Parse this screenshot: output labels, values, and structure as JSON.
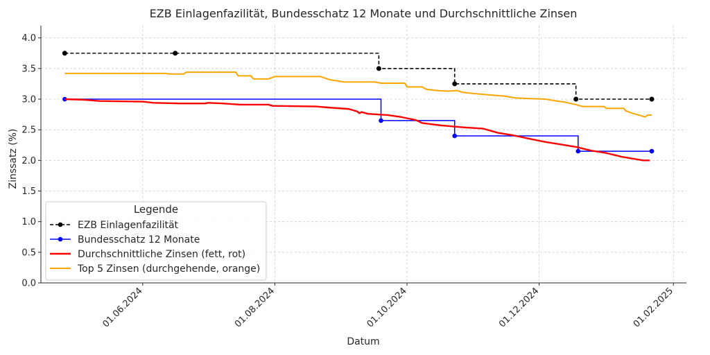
{
  "chart_data": {
    "type": "line",
    "title": "EZB Einlagenfazilität, Bundesschatz 12 Monate und Durchschnittliche Zinsen",
    "xlabel": "Datum",
    "ylabel": "Zinssatz (%)",
    "xlim": [
      "2024-04-15",
      "2025-02-07"
    ],
    "ylim": [
      0,
      4.2
    ],
    "x_ticks": [
      {
        "date": "2024-06-01",
        "label": "01.06.2024"
      },
      {
        "date": "2024-08-01",
        "label": "01.08.2024"
      },
      {
        "date": "2024-10-01",
        "label": "01.10.2024"
      },
      {
        "date": "2024-12-01",
        "label": "01.12.2024"
      },
      {
        "date": "2025-02-01",
        "label": "01.02.2025"
      }
    ],
    "y_ticks": [
      "0.0",
      "0.5",
      "1.0",
      "1.5",
      "2.0",
      "2.5",
      "3.0",
      "3.5",
      "4.0"
    ],
    "grid": true,
    "legend": {
      "title": "Legende",
      "placement": "lower-left",
      "entries": [
        "EZB Einlagenfazilität",
        "Bundesschatz 12 Monate",
        "Durchschnittliche Zinsen (fett, rot)",
        "Top 5 Zinsen (durchgehende, orange)"
      ]
    },
    "series": [
      {
        "name": "EZB Einlagenfazilität",
        "color": "#000000",
        "style": "dashed-step-markers",
        "points": [
          [
            "2024-04-26",
            3.75
          ],
          [
            "2024-06-16",
            3.75
          ],
          [
            "2024-09-18",
            3.5
          ],
          [
            "2024-10-23",
            3.25
          ],
          [
            "2024-12-18",
            3.0
          ],
          [
            "2025-01-22",
            3.0
          ]
        ]
      },
      {
        "name": "Bundesschatz 12 Monate",
        "color": "#0000ff",
        "style": "solid-step-markers",
        "points": [
          [
            "2024-04-26",
            3.0
          ],
          [
            "2024-09-19",
            2.65
          ],
          [
            "2024-10-23",
            2.4
          ],
          [
            "2024-12-19",
            2.15
          ],
          [
            "2025-01-22",
            2.15
          ]
        ]
      },
      {
        "name": "Durchschnittliche Zinsen (fett, rot)",
        "color": "#ff0000",
        "style": "bold-line",
        "points": [
          [
            "2024-04-26",
            3.0
          ],
          [
            "2024-05-05",
            2.99
          ],
          [
            "2024-05-12",
            2.97
          ],
          [
            "2024-06-01",
            2.96
          ],
          [
            "2024-06-06",
            2.94
          ],
          [
            "2024-06-18",
            2.93
          ],
          [
            "2024-06-30",
            2.93
          ],
          [
            "2024-07-01",
            2.94
          ],
          [
            "2024-07-08",
            2.93
          ],
          [
            "2024-07-16",
            2.91
          ],
          [
            "2024-07-29",
            2.91
          ],
          [
            "2024-07-31",
            2.89
          ],
          [
            "2024-08-20",
            2.88
          ],
          [
            "2024-08-27",
            2.86
          ],
          [
            "2024-09-04",
            2.84
          ],
          [
            "2024-09-08",
            2.8
          ],
          [
            "2024-09-09",
            2.77
          ],
          [
            "2024-09-10",
            2.79
          ],
          [
            "2024-09-13",
            2.76
          ],
          [
            "2024-09-22",
            2.74
          ],
          [
            "2024-09-28",
            2.71
          ],
          [
            "2024-10-05",
            2.66
          ],
          [
            "2024-10-08",
            2.61
          ],
          [
            "2024-10-17",
            2.57
          ],
          [
            "2024-10-27",
            2.54
          ],
          [
            "2024-11-05",
            2.52
          ],
          [
            "2024-11-12",
            2.45
          ],
          [
            "2024-11-19",
            2.41
          ],
          [
            "2024-11-27",
            2.35
          ],
          [
            "2024-12-04",
            2.3
          ],
          [
            "2024-12-11",
            2.26
          ],
          [
            "2024-12-18",
            2.22
          ],
          [
            "2024-12-25",
            2.16
          ],
          [
            "2025-01-01",
            2.12
          ],
          [
            "2025-01-08",
            2.06
          ],
          [
            "2025-01-13",
            2.03
          ],
          [
            "2025-01-18",
            2.0
          ],
          [
            "2025-01-21",
            2.0
          ]
        ]
      },
      {
        "name": "Top 5 Zinsen (durchgehende, orange)",
        "color": "#ffa500",
        "style": "solid-line",
        "points": [
          [
            "2024-04-26",
            3.42
          ],
          [
            "2024-06-12",
            3.42
          ],
          [
            "2024-06-13",
            3.41
          ],
          [
            "2024-06-20",
            3.41
          ],
          [
            "2024-06-21",
            3.44
          ],
          [
            "2024-07-14",
            3.44
          ],
          [
            "2024-07-15",
            3.38
          ],
          [
            "2024-07-21",
            3.38
          ],
          [
            "2024-07-22",
            3.33
          ],
          [
            "2024-07-29",
            3.33
          ],
          [
            "2024-08-01",
            3.37
          ],
          [
            "2024-08-22",
            3.37
          ],
          [
            "2024-08-26",
            3.32
          ],
          [
            "2024-09-02",
            3.28
          ],
          [
            "2024-09-16",
            3.28
          ],
          [
            "2024-09-19",
            3.26
          ],
          [
            "2024-09-30",
            3.26
          ],
          [
            "2024-10-01",
            3.2
          ],
          [
            "2024-10-08",
            3.2
          ],
          [
            "2024-10-10",
            3.16
          ],
          [
            "2024-10-15",
            3.14
          ],
          [
            "2024-10-20",
            3.13
          ],
          [
            "2024-10-24",
            3.14
          ],
          [
            "2024-10-27",
            3.11
          ],
          [
            "2024-11-01",
            3.09
          ],
          [
            "2024-11-08",
            3.07
          ],
          [
            "2024-11-15",
            3.05
          ],
          [
            "2024-11-20",
            3.02
          ],
          [
            "2024-11-26",
            3.01
          ],
          [
            "2024-12-04",
            3.0
          ],
          [
            "2024-12-09",
            2.97
          ],
          [
            "2024-12-13",
            2.95
          ],
          [
            "2024-12-18",
            2.91
          ],
          [
            "2024-12-21",
            2.88
          ],
          [
            "2024-12-31",
            2.88
          ],
          [
            "2025-01-01",
            2.85
          ],
          [
            "2025-01-09",
            2.85
          ],
          [
            "2025-01-10",
            2.81
          ],
          [
            "2025-01-13",
            2.77
          ],
          [
            "2025-01-17",
            2.73
          ],
          [
            "2025-01-19",
            2.71
          ],
          [
            "2025-01-20",
            2.74
          ],
          [
            "2025-01-22",
            2.74
          ]
        ]
      }
    ]
  }
}
